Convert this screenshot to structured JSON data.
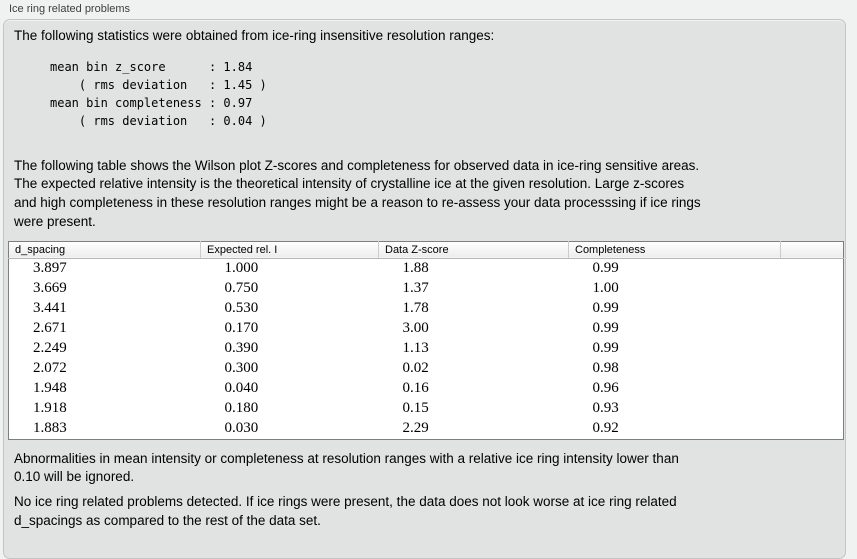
{
  "colors": {
    "page_background": "#f0f1f1",
    "panel_background": "#e1e2e2",
    "panel_border": "#c3c4c4",
    "table_background": "#ffffff",
    "table_border": "#7e7e7e"
  },
  "group": {
    "title": "Ice ring related problems"
  },
  "sections": {
    "intro": {
      "lines": [
        "The following statistics were obtained from ice-ring insensitive resolution ranges:"
      ]
    },
    "stats": {
      "block": "mean bin z_score      : 1.84\n    ( rms deviation   : 1.45 )\nmean bin completeness : 0.97\n    ( rms deviation   : 0.04 )",
      "mean_bin_z_score": "1.84",
      "z_score_rms_deviation": "1.45",
      "mean_bin_completeness": "0.97",
      "completeness_rms_deviation": "0.04"
    },
    "wilson_note": {
      "lines": [
        "The following table shows the Wilson plot Z-scores and completeness for observed data in ice-ring sensitive areas.",
        "The expected relative intensity is the theoretical intensity of crystalline ice at the given resolution. Large z-scores",
        "and high completeness in these resolution ranges might be a reason to re-assess your data processsing if ice rings",
        "were present."
      ]
    },
    "ignore_note": {
      "lines": [
        "Abnormalities in mean intensity or completeness at resolution ranges with a relative ice ring intensity lower than",
        "0.10 will be ignored."
      ]
    },
    "conclusion": {
      "lines": [
        "No ice ring related problems detected. If ice rings were present, the data does not look worse at ice ring related",
        "d_spacings as compared to the rest of the data set."
      ]
    }
  },
  "table": {
    "headers": [
      "d_spacing",
      "Expected rel. I",
      "Data Z-score",
      "Completeness",
      ""
    ],
    "rows": [
      [
        "3.897",
        "1.000",
        "1.88",
        "0.99"
      ],
      [
        "3.669",
        "0.750",
        "1.37",
        "1.00"
      ],
      [
        "3.441",
        "0.530",
        "1.78",
        "0.99"
      ],
      [
        "2.671",
        "0.170",
        "3.00",
        "0.99"
      ],
      [
        "2.249",
        "0.390",
        "1.13",
        "0.99"
      ],
      [
        "2.072",
        "0.300",
        "0.02",
        "0.98"
      ],
      [
        "1.948",
        "0.040",
        "0.16",
        "0.96"
      ],
      [
        "1.918",
        "0.180",
        "0.15",
        "0.93"
      ],
      [
        "1.883",
        "0.030",
        "2.29",
        "0.92"
      ]
    ]
  }
}
